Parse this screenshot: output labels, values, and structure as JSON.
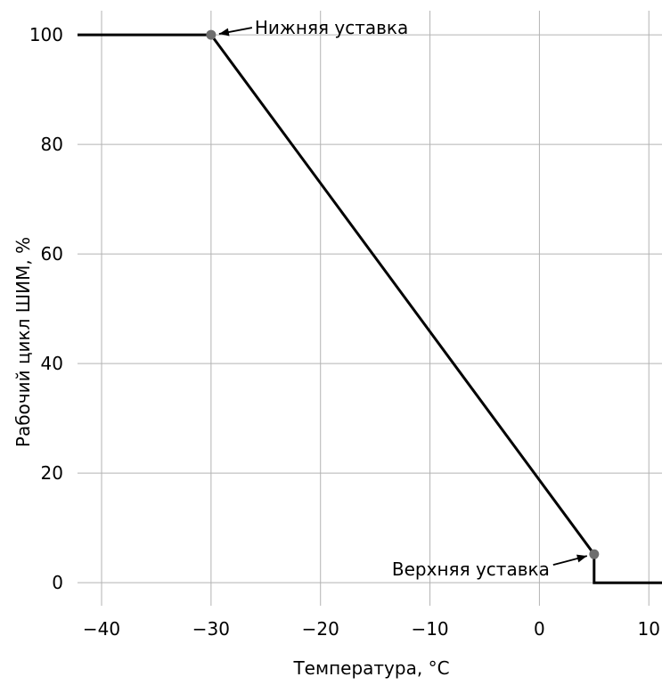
{
  "chart_data": {
    "type": "line",
    "xlabel": "Температура, °C",
    "ylabel": "Рабочий цикл ШИМ, %",
    "xlim": [
      -42.2,
      11.2
    ],
    "ylim": [
      -4.2,
      104.4
    ],
    "xticks": [
      -40,
      -30,
      -20,
      -10,
      0,
      10
    ],
    "xtick_labels": [
      "−40",
      "−30",
      "−20",
      "−10",
      "0",
      "10"
    ],
    "yticks": [
      0,
      20,
      40,
      60,
      80,
      100
    ],
    "ytick_labels": [
      "0",
      "20",
      "40",
      "60",
      "80",
      "100"
    ],
    "grid": true,
    "series": [
      {
        "x": [
          -42.2,
          -30,
          5,
          5,
          11.2
        ],
        "y": [
          100,
          100,
          5.2,
          0,
          0
        ],
        "color": "#000000"
      }
    ],
    "markers": [
      {
        "x": -30,
        "y": 100,
        "color": "#6e6e6e"
      },
      {
        "x": 5,
        "y": 5.2,
        "color": "#6e6e6e"
      }
    ],
    "annotations": [
      {
        "text": "Нижняя уставка",
        "x": -30,
        "y": 100,
        "side": "right"
      },
      {
        "text": "Верхняя уставка",
        "x": 5,
        "y": 5.2,
        "side": "left"
      }
    ]
  }
}
